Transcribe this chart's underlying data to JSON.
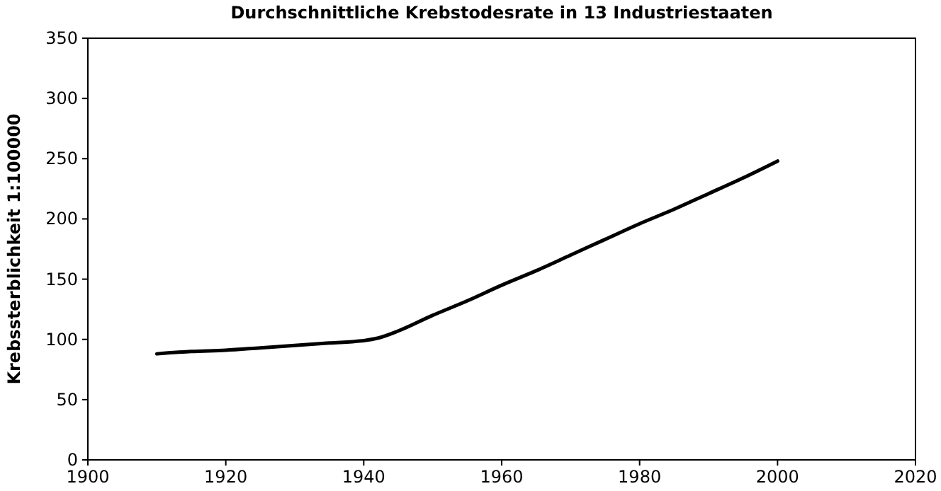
{
  "chart_data": {
    "type": "line",
    "title": "Durchschnittliche Krebstodesrate in 13 Industriestaaten",
    "ylabel": "Krebssterblichkeit 1:100000",
    "x": [
      1910,
      1915,
      1920,
      1925,
      1930,
      1935,
      1940,
      1942,
      1945,
      1950,
      1955,
      1960,
      1965,
      1970,
      1975,
      1980,
      1985,
      1990,
      1995,
      2000
    ],
    "series": [
      {
        "color": "#000000",
        "values": [
          88,
          90,
          91,
          93,
          95,
          97,
          99,
          101,
          107,
          120,
          132,
          145,
          157,
          170,
          183,
          196,
          208,
          221,
          234,
          248
        ]
      }
    ],
    "xlim": [
      1900,
      2020
    ],
    "xticks": [
      1900,
      1920,
      1940,
      1960,
      1980,
      2000,
      2020
    ],
    "ylim": [
      0,
      350
    ],
    "yticks": [
      0,
      50,
      100,
      150,
      200,
      250,
      300,
      350
    ],
    "grid": false
  }
}
